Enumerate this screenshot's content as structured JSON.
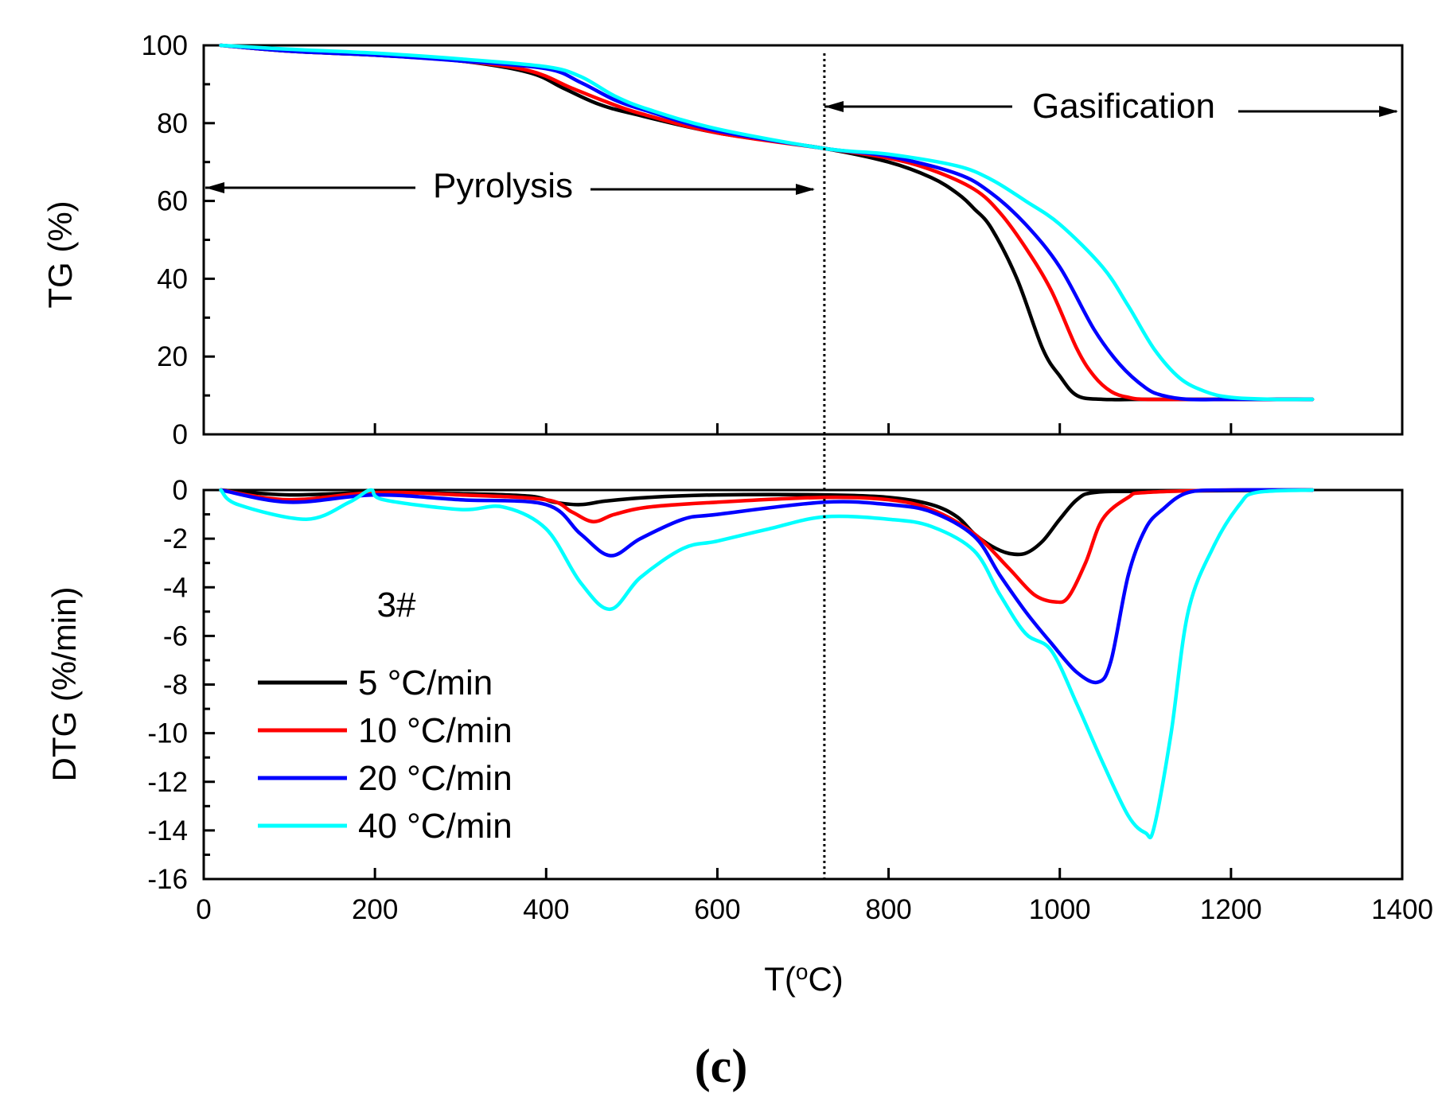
{
  "chart_data": [
    {
      "type": "line",
      "panel": "top",
      "ylabel": "TG (%)",
      "xlim": [
        0,
        1400
      ],
      "ylim": [
        0,
        100
      ],
      "yticks": [
        0,
        20,
        40,
        60,
        80,
        100
      ],
      "annotations": {
        "pyrolysis": "Pyrolysis",
        "gasification": "Gasification",
        "divider_x": 725
      },
      "series": [
        {
          "name": "5 °C/min",
          "color": "#000000",
          "x": [
            20,
            100,
            200,
            300,
            380,
            420,
            460,
            500,
            600,
            725,
            800,
            850,
            880,
            900,
            920,
            950,
            980,
            1000,
            1020,
            1050,
            1100,
            1200,
            1295
          ],
          "y": [
            100,
            98.5,
            97.5,
            96,
            93,
            89,
            85,
            82.5,
            77.5,
            73.5,
            70,
            66,
            62,
            58,
            53,
            40,
            22,
            15,
            10,
            9,
            9,
            9,
            9
          ]
        },
        {
          "name": "10 °C/min",
          "color": "#ff0000",
          "x": [
            20,
            100,
            200,
            300,
            380,
            430,
            470,
            510,
            600,
            725,
            800,
            850,
            900,
            930,
            960,
            990,
            1020,
            1040,
            1060,
            1080,
            1100,
            1150,
            1200,
            1295
          ],
          "y": [
            100,
            98.5,
            97.5,
            96,
            93.5,
            89,
            85.5,
            82.5,
            77.5,
            73.5,
            71,
            68,
            63,
            57,
            48,
            37,
            22,
            15,
            11,
            9.5,
            9,
            9,
            9,
            9
          ]
        },
        {
          "name": "20 °C/min",
          "color": "#0000ff",
          "x": [
            20,
            100,
            200,
            300,
            400,
            440,
            480,
            520,
            600,
            725,
            800,
            880,
            920,
            960,
            1000,
            1040,
            1070,
            1100,
            1120,
            1150,
            1200,
            1295
          ],
          "y": [
            100,
            98.5,
            97.5,
            96,
            94,
            90.5,
            86,
            83,
            78,
            73.5,
            71.5,
            67,
            62,
            54,
            43,
            27,
            18,
            12,
            10,
            9,
            9,
            9
          ]
        },
        {
          "name": "40 °C/min",
          "color": "#00ffff",
          "x": [
            20,
            100,
            200,
            300,
            400,
            440,
            480,
            520,
            600,
            725,
            800,
            880,
            920,
            960,
            1000,
            1050,
            1080,
            1110,
            1140,
            1170,
            1200,
            1250,
            1295
          ],
          "y": [
            100,
            99,
            98,
            96.5,
            94.5,
            92,
            87,
            83.5,
            78.5,
            73.5,
            72,
            69,
            65.5,
            60,
            54,
            43,
            33,
            22,
            14.5,
            11,
            9.5,
            9,
            9
          ]
        }
      ]
    },
    {
      "type": "line",
      "panel": "bottom",
      "xlabel_main": "T(",
      "xlabel_sup": "o",
      "xlabel_end": "C)",
      "ylabel": "DTG (%/min)",
      "xlim": [
        0,
        1400
      ],
      "ylim": [
        -16,
        0
      ],
      "xticks": [
        0,
        200,
        400,
        600,
        800,
        1000,
        1200,
        1400
      ],
      "yticks": [
        0,
        -2,
        -4,
        -6,
        -8,
        -10,
        -12,
        -14,
        -16
      ],
      "sample_label": "3#",
      "series": [
        {
          "name": "5 °C/min",
          "color": "#000000",
          "x": [
            20,
            100,
            200,
            300,
            380,
            410,
            440,
            470,
            520,
            600,
            725,
            800,
            850,
            880,
            900,
            920,
            940,
            960,
            980,
            1000,
            1020,
            1040,
            1100,
            1295
          ],
          "y": [
            0,
            -0.2,
            -0.1,
            -0.15,
            -0.25,
            -0.5,
            -0.6,
            -0.45,
            -0.3,
            -0.2,
            -0.2,
            -0.3,
            -0.6,
            -1.1,
            -1.8,
            -2.3,
            -2.6,
            -2.6,
            -2.1,
            -1.2,
            -0.4,
            -0.1,
            -0.05,
            0
          ]
        },
        {
          "name": "10 °C/min",
          "color": "#ff0000",
          "x": [
            20,
            100,
            200,
            300,
            400,
            430,
            455,
            480,
            520,
            600,
            725,
            800,
            850,
            900,
            940,
            970,
            995,
            1010,
            1030,
            1050,
            1080,
            1100,
            1200,
            1295
          ],
          "y": [
            0,
            -0.4,
            -0.1,
            -0.2,
            -0.4,
            -0.9,
            -1.3,
            -1.0,
            -0.7,
            -0.5,
            -0.3,
            -0.4,
            -0.8,
            -1.8,
            -3.2,
            -4.3,
            -4.6,
            -4.4,
            -3.0,
            -1.2,
            -0.3,
            -0.1,
            0,
            0
          ]
        },
        {
          "name": "20 °C/min",
          "color": "#0000ff",
          "x": [
            20,
            100,
            200,
            300,
            400,
            440,
            475,
            510,
            560,
            600,
            725,
            800,
            850,
            900,
            930,
            960,
            990,
            1020,
            1045,
            1060,
            1080,
            1100,
            1120,
            1150,
            1200,
            1295
          ],
          "y": [
            0,
            -0.5,
            -0.2,
            -0.4,
            -0.6,
            -1.8,
            -2.7,
            -2.0,
            -1.2,
            -1.0,
            -0.5,
            -0.6,
            -0.9,
            -1.9,
            -3.5,
            -5.0,
            -6.3,
            -7.5,
            -7.9,
            -7.0,
            -3.5,
            -1.6,
            -0.8,
            -0.1,
            0,
            0
          ]
        },
        {
          "name": "40 °C/min",
          "color": "#00ffff",
          "x": [
            20,
            40,
            120,
            170,
            195,
            210,
            300,
            350,
            400,
            440,
            475,
            510,
            560,
            600,
            660,
            725,
            800,
            850,
            900,
            930,
            960,
            990,
            1020,
            1050,
            1080,
            1100,
            1110,
            1130,
            1150,
            1180,
            1210,
            1230,
            1295
          ],
          "y": [
            0,
            -0.6,
            -1.2,
            -0.5,
            0,
            -0.4,
            -0.8,
            -0.7,
            -1.6,
            -3.8,
            -4.9,
            -3.6,
            -2.4,
            -2.1,
            -1.6,
            -1.1,
            -1.2,
            -1.5,
            -2.5,
            -4.3,
            -5.9,
            -6.6,
            -8.8,
            -11.2,
            -13.4,
            -14.1,
            -13.9,
            -10.0,
            -5.0,
            -2.3,
            -0.6,
            -0.1,
            0
          ]
        }
      ]
    }
  ],
  "panel_label": "(c)"
}
